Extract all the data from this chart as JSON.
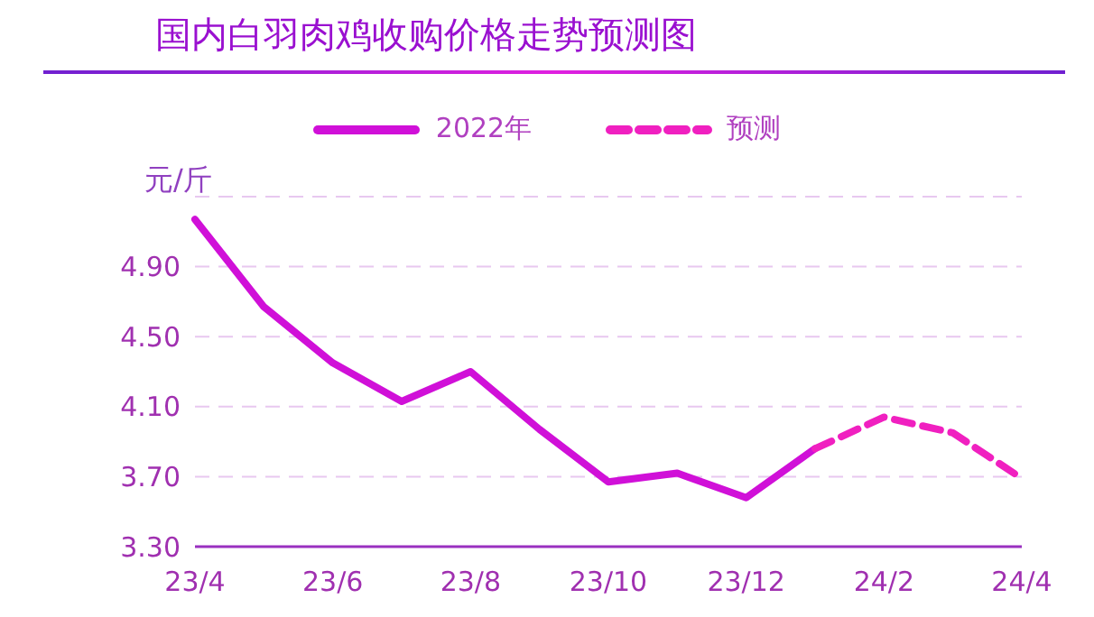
{
  "chart_data": {
    "type": "line",
    "title": "国内白羽肉鸡收购价格走势预测图",
    "ylabel": "元/斤",
    "categories": [
      "23/4",
      null,
      "23/6",
      null,
      "23/8",
      null,
      "23/10",
      null,
      "23/12",
      null,
      "24/2",
      null,
      "24/4"
    ],
    "series": [
      {
        "name": "2022年",
        "color": "#d010d8",
        "line_style": "solid",
        "values": [
          5.17,
          4.67,
          4.35,
          4.13,
          4.3,
          3.97,
          3.67,
          3.72,
          3.58,
          3.86,
          null,
          null,
          null
        ]
      },
      {
        "name": "预测",
        "color": "#f020c0",
        "line_style": "dashed",
        "values": [
          null,
          null,
          null,
          null,
          null,
          null,
          null,
          null,
          null,
          3.86,
          4.04,
          3.95,
          3.69
        ]
      }
    ],
    "ylim": [
      3.3,
      5.3
    ],
    "yticks": [
      {
        "value": 3.3,
        "label": "3.30"
      },
      {
        "value": 3.7,
        "label": "3.70"
      },
      {
        "value": 4.1,
        "label": "4.10"
      },
      {
        "value": 4.5,
        "label": "4.50"
      },
      {
        "value": 4.9,
        "label": "4.90"
      }
    ],
    "grid": "y",
    "legend": "top",
    "marker": "none"
  }
}
